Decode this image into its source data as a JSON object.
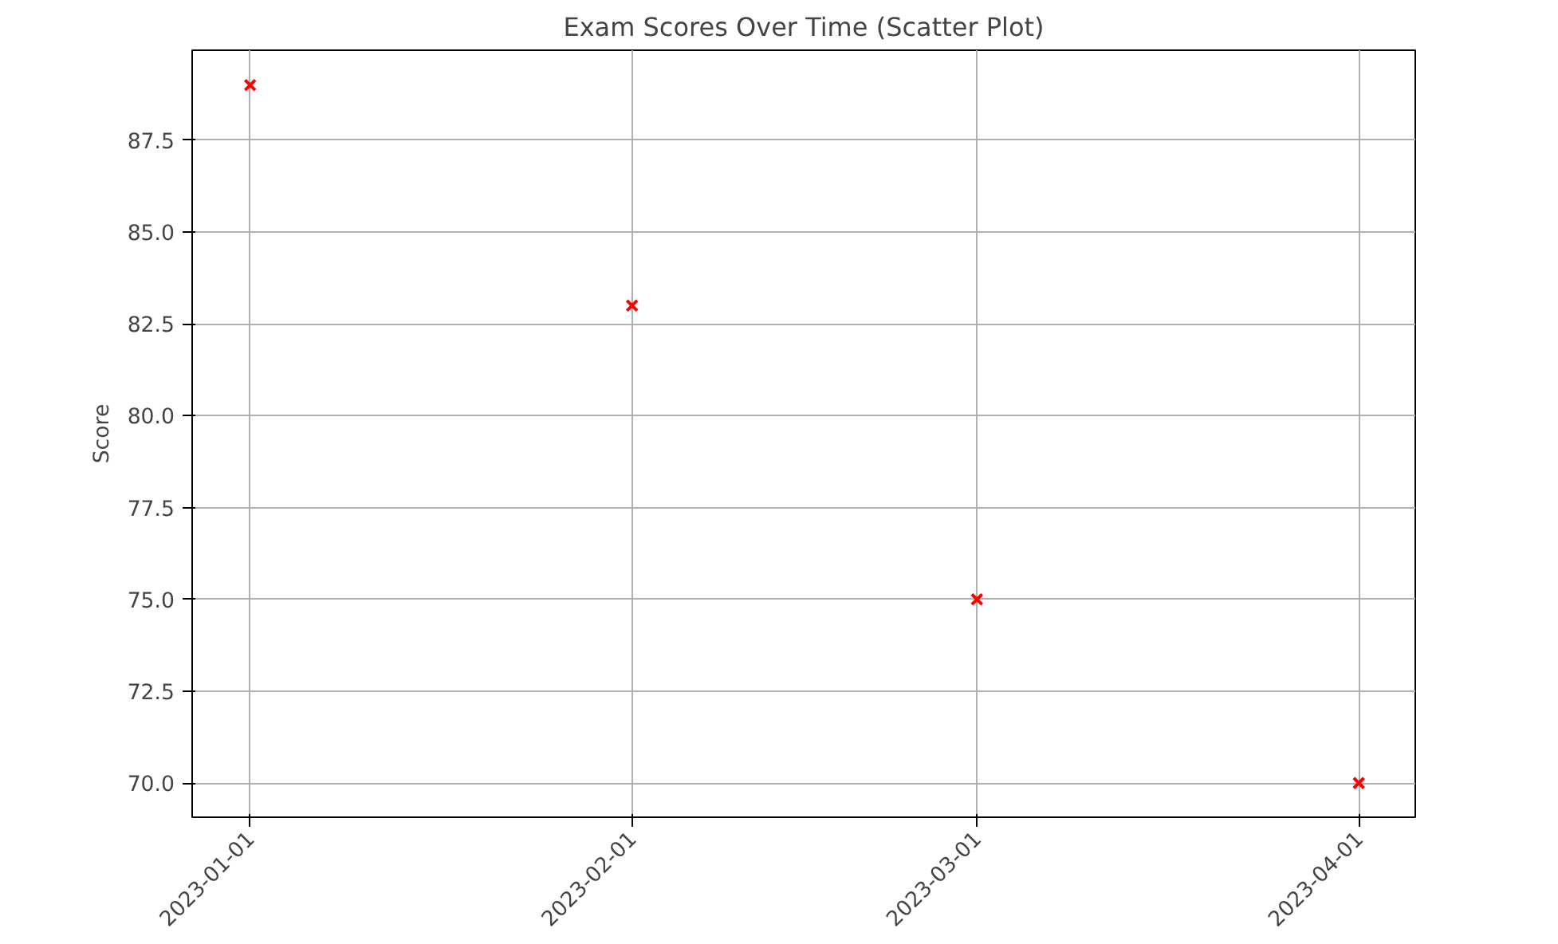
{
  "chart_data": {
    "type": "scatter",
    "title": "Exam Scores Over Time (Scatter Plot)",
    "ylabel": "Score",
    "x": [
      "2023-01-01",
      "2023-02-01",
      "2023-03-01",
      "2023-04-01"
    ],
    "series": [
      {
        "color": "#ff0000",
        "values": [
          89,
          83,
          75,
          70
        ]
      }
    ],
    "xlim": [
      "2022-12-27T07:00",
      "2023-04-05T14:00"
    ],
    "xticks": [
      "2023-01-01",
      "2023-02-01",
      "2023-03-01",
      "2023-04-01"
    ],
    "ylim": [
      69.07,
      89.95
    ],
    "yticks": [
      {
        "value": 70,
        "label": "70.0"
      },
      72.5,
      {
        "value": 75,
        "label": "75.0"
      },
      77.5,
      {
        "value": 80,
        "label": "80.0"
      },
      82.5,
      {
        "value": 85,
        "label": "85.0"
      },
      87.5
    ],
    "marker": "cross",
    "grid": true
  }
}
